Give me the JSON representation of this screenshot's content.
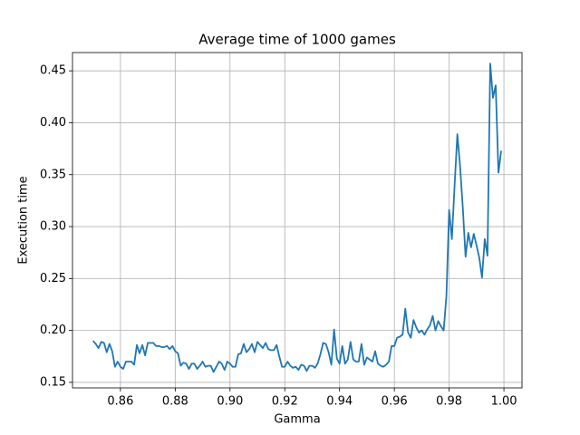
{
  "chart_data": {
    "type": "line",
    "title": "Average time of 1000 games",
    "xlabel": "Gamma",
    "ylabel": "Execution time",
    "x": [
      0.85,
      0.851,
      0.852,
      0.853,
      0.854,
      0.855,
      0.856,
      0.857,
      0.858,
      0.859,
      0.86,
      0.861,
      0.862,
      0.863,
      0.864,
      0.865,
      0.866,
      0.867,
      0.868,
      0.869,
      0.87,
      0.871,
      0.872,
      0.873,
      0.874,
      0.875,
      0.876,
      0.877,
      0.878,
      0.879,
      0.88,
      0.881,
      0.882,
      0.883,
      0.884,
      0.885,
      0.886,
      0.887,
      0.888,
      0.889,
      0.89,
      0.891,
      0.892,
      0.893,
      0.894,
      0.895,
      0.896,
      0.897,
      0.898,
      0.899,
      0.9,
      0.901,
      0.902,
      0.903,
      0.904,
      0.905,
      0.906,
      0.907,
      0.908,
      0.909,
      0.91,
      0.911,
      0.912,
      0.913,
      0.914,
      0.915,
      0.916,
      0.917,
      0.918,
      0.919,
      0.92,
      0.921,
      0.922,
      0.923,
      0.924,
      0.925,
      0.926,
      0.927,
      0.928,
      0.929,
      0.93,
      0.931,
      0.932,
      0.933,
      0.934,
      0.935,
      0.936,
      0.937,
      0.938,
      0.939,
      0.94,
      0.941,
      0.942,
      0.943,
      0.944,
      0.945,
      0.946,
      0.947,
      0.948,
      0.949,
      0.95,
      0.951,
      0.952,
      0.953,
      0.954,
      0.955,
      0.956,
      0.957,
      0.958,
      0.959,
      0.96,
      0.961,
      0.962,
      0.963,
      0.964,
      0.965,
      0.966,
      0.967,
      0.968,
      0.969,
      0.97,
      0.971,
      0.972,
      0.973,
      0.974,
      0.975,
      0.976,
      0.977,
      0.978,
      0.979,
      0.98,
      0.981,
      0.982,
      0.983,
      0.984,
      0.985,
      0.986,
      0.987,
      0.988,
      0.989,
      0.99,
      0.991,
      0.992,
      0.993,
      0.994,
      0.995,
      0.996,
      0.997,
      0.998,
      0.999
    ],
    "values": [
      0.19,
      0.187,
      0.183,
      0.189,
      0.188,
      0.179,
      0.187,
      0.18,
      0.165,
      0.17,
      0.165,
      0.163,
      0.17,
      0.17,
      0.17,
      0.167,
      0.186,
      0.178,
      0.186,
      0.176,
      0.188,
      0.188,
      0.188,
      0.185,
      0.185,
      0.184,
      0.184,
      0.185,
      0.182,
      0.185,
      0.18,
      0.178,
      0.166,
      0.169,
      0.168,
      0.163,
      0.168,
      0.168,
      0.163,
      0.166,
      0.17,
      0.165,
      0.166,
      0.166,
      0.16,
      0.165,
      0.17,
      0.168,
      0.162,
      0.17,
      0.168,
      0.165,
      0.165,
      0.177,
      0.178,
      0.187,
      0.179,
      0.182,
      0.187,
      0.179,
      0.189,
      0.186,
      0.183,
      0.188,
      0.182,
      0.181,
      0.181,
      0.186,
      0.175,
      0.165,
      0.165,
      0.17,
      0.166,
      0.164,
      0.165,
      0.162,
      0.167,
      0.166,
      0.161,
      0.166,
      0.166,
      0.164,
      0.168,
      0.177,
      0.188,
      0.187,
      0.179,
      0.167,
      0.201,
      0.173,
      0.168,
      0.185,
      0.168,
      0.172,
      0.189,
      0.172,
      0.17,
      0.17,
      0.187,
      0.167,
      0.174,
      0.172,
      0.17,
      0.18,
      0.168,
      0.166,
      0.165,
      0.167,
      0.17,
      0.185,
      0.185,
      0.193,
      0.194,
      0.196,
      0.221,
      0.198,
      0.193,
      0.21,
      0.203,
      0.198,
      0.2,
      0.196,
      0.201,
      0.205,
      0.214,
      0.2,
      0.209,
      0.204,
      0.2,
      0.233,
      0.316,
      0.288,
      0.34,
      0.389,
      0.358,
      0.318,
      0.271,
      0.294,
      0.28,
      0.293,
      0.282,
      0.27,
      0.251,
      0.288,
      0.272,
      0.457,
      0.424,
      0.436,
      0.352,
      0.373
    ],
    "color": "#1f77b4",
    "xlim": [
      0.8425,
      1.0066
    ],
    "ylim": [
      0.1447,
      0.4676
    ],
    "xticks": [
      0.86,
      0.88,
      {
        "value": 0.9,
        "label": "0.90"
      },
      0.92,
      0.94,
      0.96,
      0.98,
      {
        "value": 1.0,
        "label": "1.00"
      }
    ],
    "yticks": [
      0.15,
      {
        "value": 0.2,
        "label": "0.20"
      },
      0.25,
      {
        "value": 0.3,
        "label": "0.30"
      },
      0.35,
      {
        "value": 0.4,
        "label": "0.40"
      },
      0.45
    ],
    "grid": true
  }
}
